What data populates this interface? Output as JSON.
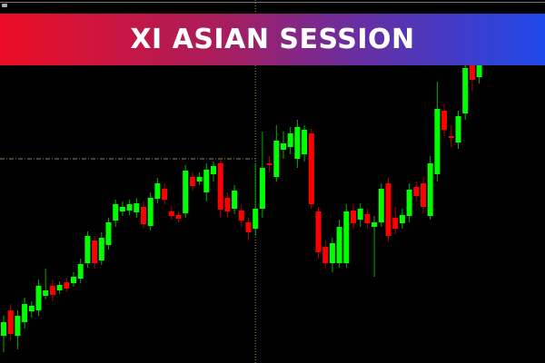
{
  "banner": {
    "title": "XI ASIAN SESSION",
    "gradient_start": "#ec0d24",
    "gradient_end": "#1e48ea"
  },
  "chart_data": {
    "type": "candlestick",
    "background": "#000000",
    "up_color": "#00ff00",
    "down_color": "#ff0000",
    "grid": false,
    "level_line": {
      "price": 225,
      "color": "#888866",
      "style": "dash-dot"
    },
    "session_marker_index": 36,
    "candles": [
      [
        30,
        52,
        12,
        45
      ],
      [
        58,
        65,
        25,
        32
      ],
      [
        30,
        58,
        15,
        52
      ],
      [
        45,
        72,
        38,
        65
      ],
      [
        57,
        68,
        50,
        63
      ],
      [
        58,
        92,
        52,
        85
      ],
      [
        74,
        104,
        70,
        80
      ],
      [
        85,
        92,
        68,
        75
      ],
      [
        80,
        90,
        76,
        86
      ],
      [
        89,
        94,
        78,
        82
      ],
      [
        88,
        100,
        84,
        95
      ],
      [
        93,
        115,
        88,
        109
      ],
      [
        110,
        145,
        105,
        140
      ],
      [
        135,
        140,
        104,
        110
      ],
      [
        113,
        144,
        108,
        138
      ],
      [
        130,
        160,
        125,
        155
      ],
      [
        157,
        180,
        150,
        175
      ],
      [
        167,
        178,
        162,
        172
      ],
      [
        168,
        180,
        163,
        175
      ],
      [
        166,
        182,
        160,
        176
      ],
      [
        172,
        178,
        148,
        153
      ],
      [
        151,
        188,
        146,
        182
      ],
      [
        181,
        204,
        176,
        198
      ],
      [
        192,
        198,
        175,
        180
      ],
      [
        167,
        172,
        158,
        162
      ],
      [
        163,
        167,
        155,
        159
      ],
      [
        165,
        218,
        160,
        212
      ],
      [
        205,
        210,
        190,
        195
      ],
      [
        200,
        210,
        196,
        205
      ],
      [
        188,
        220,
        178,
        213
      ],
      [
        208,
        222,
        200,
        217
      ],
      [
        220,
        226,
        160,
        169
      ],
      [
        182,
        188,
        160,
        167
      ],
      [
        170,
        196,
        164,
        190
      ],
      [
        168,
        175,
        150,
        157
      ],
      [
        155,
        160,
        135,
        144
      ],
      [
        148,
        220,
        140,
        170
      ],
      [
        170,
        255,
        160,
        215
      ],
      [
        220,
        228,
        210,
        218
      ],
      [
        205,
        262,
        200,
        245
      ],
      [
        235,
        255,
        225,
        242
      ],
      [
        238,
        260,
        230,
        253
      ],
      [
        225,
        268,
        215,
        260
      ],
      [
        230,
        262,
        222,
        257
      ],
      [
        253,
        258,
        170,
        175
      ],
      [
        167,
        172,
        115,
        122
      ],
      [
        128,
        135,
        105,
        110
      ],
      [
        110,
        138,
        100,
        132
      ],
      [
        110,
        158,
        105,
        150
      ],
      [
        110,
        175,
        105,
        167
      ],
      [
        168,
        175,
        148,
        154
      ],
      [
        158,
        176,
        150,
        170
      ],
      [
        164,
        170,
        148,
        154
      ],
      [
        150,
        162,
        95,
        155
      ],
      [
        155,
        198,
        150,
        192
      ],
      [
        198,
        204,
        134,
        140
      ],
      [
        160,
        172,
        142,
        148
      ],
      [
        154,
        170,
        148,
        163
      ],
      [
        162,
        198,
        155,
        191
      ],
      [
        194,
        200,
        178,
        184
      ],
      [
        198,
        205,
        165,
        172
      ],
      [
        162,
        228,
        158,
        220
      ],
      [
        208,
        310,
        200,
        280
      ],
      [
        278,
        285,
        250,
        257
      ],
      [
        250,
        262,
        238,
        248
      ],
      [
        243,
        278,
        236,
        272
      ],
      [
        275,
        335,
        268,
        325
      ],
      [
        330,
        340,
        300,
        312
      ],
      [
        315,
        340,
        308,
        330
      ]
    ]
  }
}
